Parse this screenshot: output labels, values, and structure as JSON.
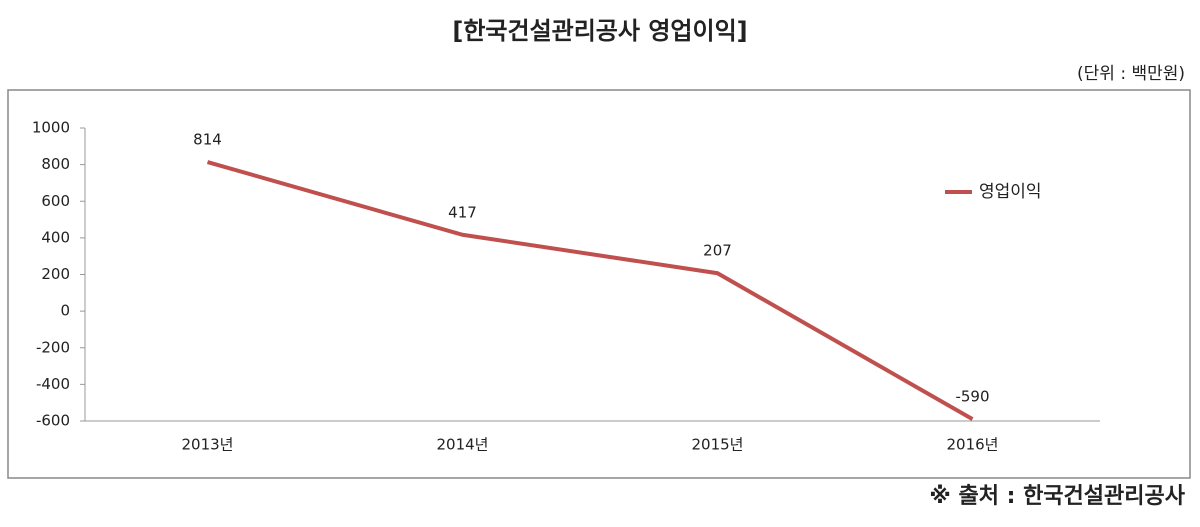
{
  "chart_data": {
    "type": "line",
    "title": "[한국건설관리공사 영업이익]",
    "subtitle": "(단위 : 백만원)",
    "source": "※ 출처 : 한국건설관리공사",
    "categories": [
      "2013년",
      "2014년",
      "2015년",
      "2016년"
    ],
    "series": [
      {
        "name": "영업이익",
        "color": "#c0504d",
        "values": [
          814,
          417,
          207,
          -590
        ]
      }
    ],
    "ylim": [
      -600,
      1000
    ],
    "yticks": [
      -600,
      -400,
      -200,
      0,
      200,
      400,
      600,
      800,
      1000
    ],
    "grid": false,
    "legend": "right"
  }
}
